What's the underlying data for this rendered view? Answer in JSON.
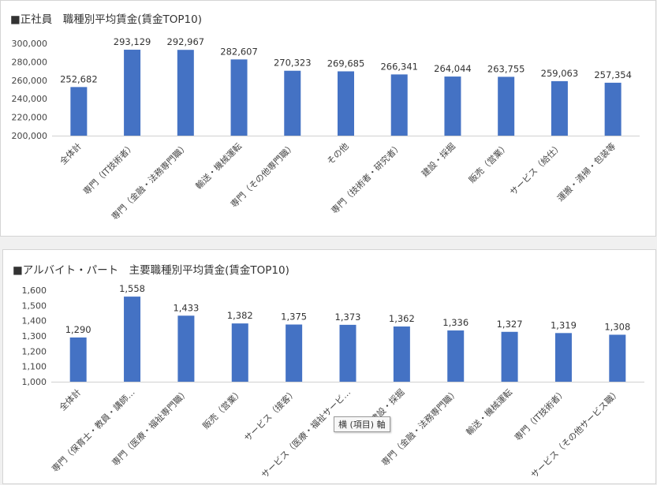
{
  "charts": [
    {
      "title": "■正社員　職種別平均賃金(賃金TOP10)",
      "chart_data": {
        "type": "bar",
        "title": "■正社員　職種別平均賃金(賃金TOP10)",
        "categories": [
          "全体計",
          "専門（IT技術者）",
          "専門（金融・法務専門職）",
          "輸送・機械運転",
          "専門（その他専門職）",
          "その他",
          "専門（技術者・研究者）",
          "建設・採掘",
          "販売（営業）",
          "サービス（給仕）",
          "運搬・清掃・包装等"
        ],
        "values": [
          252682,
          293129,
          292967,
          282607,
          270323,
          269685,
          266341,
          264044,
          263755,
          259063,
          257354
        ],
        "value_labels": [
          "252,682",
          "293,129",
          "292,967",
          "282,607",
          "270,323",
          "269,685",
          "266,341",
          "264,044",
          "263,755",
          "259,063",
          "257,354"
        ],
        "yticks": [
          "200,000",
          "220,000",
          "240,000",
          "260,000",
          "280,000",
          "300,000"
        ],
        "ylim": [
          200000,
          300000
        ],
        "bar_color": "#4472c4"
      }
    },
    {
      "title": "■アルバイト・パート　主要職種別平均賃金(賃金TOP10)",
      "chart_data": {
        "type": "bar",
        "title": "■アルバイト・パート　主要職種別平均賃金(賃金TOP10)",
        "categories": [
          "全体計",
          "専門（保育士・教員・講師…",
          "専門（医療・福祉専門職）",
          "販売（営業）",
          "サービス（接客）",
          "サービス（医療・福祉サービ…",
          "建設・採掘",
          "専門（金融・法務専門職）",
          "輸送・機械運転",
          "専門（IT技術者）",
          "サービス（その他サービス職）"
        ],
        "values": [
          1290,
          1558,
          1433,
          1382,
          1375,
          1373,
          1362,
          1336,
          1327,
          1319,
          1308
        ],
        "value_labels": [
          "1,290",
          "1,558",
          "1,433",
          "1,382",
          "1,375",
          "1,373",
          "1,362",
          "1,336",
          "1,327",
          "1,319",
          "1,308"
        ],
        "yticks": [
          "1,000",
          "1,100",
          "1,200",
          "1,300",
          "1,400",
          "1,500",
          "1,600"
        ],
        "ylim": [
          1000,
          1600
        ],
        "bar_color": "#4472c4"
      }
    }
  ],
  "tooltip": "横 (項目) 軸"
}
